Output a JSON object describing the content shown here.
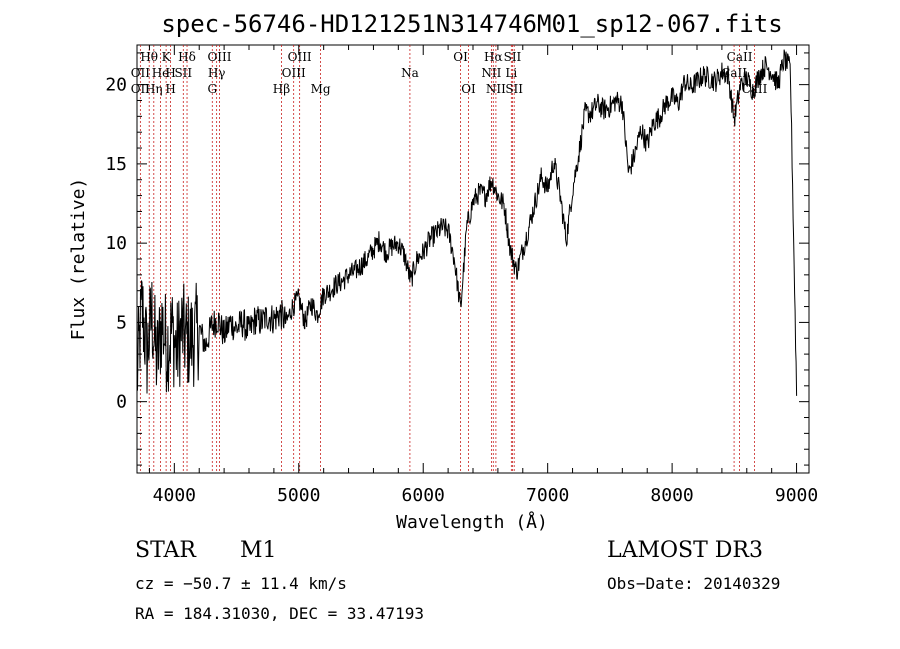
{
  "colors": {
    "spectrum": "#000000",
    "lines": "#c8201e",
    "axes": "#000000"
  },
  "chart_data": {
    "type": "line",
    "title": "spec-56746-HD121251N314746M01_sp12-067.fits",
    "xlabel": "Wavelength (Å)",
    "ylabel": "Flux (relative)",
    "xlim": [
      3700,
      9100
    ],
    "ylim": [
      -4.5,
      22.5
    ],
    "xticks": [
      4000,
      5000,
      6000,
      7000,
      8000,
      9000
    ],
    "yticks": [
      0,
      5,
      10,
      15,
      20
    ],
    "series": [
      {
        "name": "spectrum",
        "x": [
          3700,
          3740,
          3780,
          3820,
          3860,
          3900,
          3940,
          3980,
          4020,
          4060,
          4100,
          4150,
          4200,
          4250,
          4300,
          4350,
          4400,
          4450,
          4500,
          4550,
          4600,
          4650,
          4700,
          4750,
          4800,
          4850,
          4900,
          4950,
          5000,
          5050,
          5100,
          5150,
          5200,
          5250,
          5300,
          5350,
          5400,
          5450,
          5500,
          5550,
          5600,
          5650,
          5700,
          5750,
          5800,
          5850,
          5900,
          5950,
          6000,
          6050,
          6100,
          6150,
          6200,
          6250,
          6300,
          6350,
          6400,
          6450,
          6500,
          6550,
          6600,
          6650,
          6700,
          6750,
          6800,
          6850,
          6900,
          6950,
          7000,
          7050,
          7100,
          7150,
          7200,
          7250,
          7300,
          7350,
          7400,
          7450,
          7500,
          7550,
          7600,
          7650,
          7700,
          7750,
          7800,
          7850,
          7900,
          7950,
          8000,
          8050,
          8100,
          8150,
          8200,
          8250,
          8300,
          8350,
          8400,
          8450,
          8500,
          8550,
          8600,
          8650,
          8700,
          8750,
          8800,
          8850,
          8900,
          8950,
          9000
        ],
        "values": [
          1.5,
          6.0,
          3.0,
          5.5,
          2.5,
          5.0,
          3.5,
          4.5,
          3.2,
          4.6,
          3.8,
          4.0,
          4.6,
          3.5,
          4.8,
          5.2,
          4.2,
          5.0,
          4.6,
          5.0,
          4.4,
          5.2,
          5.0,
          5.4,
          5.2,
          5.6,
          5.0,
          6.0,
          6.5,
          5.0,
          6.2,
          5.5,
          6.8,
          7.0,
          7.4,
          7.6,
          8.0,
          8.2,
          8.6,
          9.0,
          9.6,
          10.2,
          9.4,
          9.8,
          10.0,
          9.2,
          7.6,
          9.0,
          9.4,
          10.2,
          10.6,
          11.0,
          10.8,
          9.0,
          5.8,
          11.0,
          12.6,
          13.2,
          13.0,
          14.0,
          13.0,
          12.4,
          9.6,
          8.2,
          9.6,
          11.0,
          12.6,
          14.2,
          13.4,
          15.2,
          13.0,
          10.2,
          13.4,
          15.6,
          18.2,
          18.2,
          18.8,
          18.4,
          18.6,
          19.0,
          18.8,
          14.4,
          15.6,
          17.2,
          16.2,
          17.6,
          18.0,
          18.8,
          19.2,
          18.8,
          20.2,
          19.8,
          20.2,
          20.6,
          20.4,
          20.2,
          20.8,
          20.6,
          17.8,
          20.0,
          20.4,
          19.6,
          20.6,
          21.2,
          20.8,
          20.0,
          21.6,
          21.0,
          0.6
        ]
      }
    ],
    "annotations": [
      {
        "label": "Hθ",
        "wavelength": 3798,
        "row": 1
      },
      {
        "label": "K",
        "wavelength": 3934,
        "row": 1
      },
      {
        "label": "Hδ",
        "wavelength": 4102,
        "row": 1
      },
      {
        "label": "OIII",
        "wavelength": 4363,
        "row": 1
      },
      {
        "label": "OIII",
        "wavelength": 5007,
        "row": 1
      },
      {
        "label": "OI",
        "wavelength": 6300,
        "row": 1
      },
      {
        "label": "Hα",
        "wavelength": 6563,
        "row": 1
      },
      {
        "label": "SII",
        "wavelength": 6717,
        "row": 1
      },
      {
        "label": "CaII",
        "wavelength": 8542,
        "row": 1
      },
      {
        "label": "OII",
        "wavelength": 3727,
        "row": 2
      },
      {
        "label": "He",
        "wavelength": 3889,
        "row": 2
      },
      {
        "label": "H",
        "wavelength": 3970,
        "row": 2
      },
      {
        "label": "SII",
        "wavelength": 4072,
        "row": 2
      },
      {
        "label": "Hγ",
        "wavelength": 4340,
        "row": 2
      },
      {
        "label": "OIII",
        "wavelength": 4959,
        "row": 2
      },
      {
        "label": "Na",
        "wavelength": 5893,
        "row": 2
      },
      {
        "label": "NII",
        "wavelength": 6548,
        "row": 2
      },
      {
        "label": "Li",
        "wavelength": 6708,
        "row": 2
      },
      {
        "label": "CaII",
        "wavelength": 8498,
        "row": 2
      },
      {
        "label": "OII",
        "wavelength": 3727,
        "row": 3
      },
      {
        "label": "Hη",
        "wavelength": 3835,
        "row": 3
      },
      {
        "label": "H",
        "wavelength": 3970,
        "row": 3
      },
      {
        "label": "G",
        "wavelength": 4305,
        "row": 3
      },
      {
        "label": "Hβ",
        "wavelength": 4861,
        "row": 3
      },
      {
        "label": "Mg",
        "wavelength": 5175,
        "row": 3
      },
      {
        "label": "OI",
        "wavelength": 6364,
        "row": 3
      },
      {
        "label": "NII",
        "wavelength": 6584,
        "row": 3
      },
      {
        "label": "SII",
        "wavelength": 6731,
        "row": 3
      },
      {
        "label": "CaII",
        "wavelength": 8662,
        "row": 3
      }
    ]
  },
  "info": {
    "object_type": "STAR",
    "subclass": "M1",
    "survey": "LAMOST DR3",
    "redshift": "cz = −50.7 ± 11.4 km/s",
    "obs_date": "Obs−Date: 20140329",
    "coords": "RA = 184.31030, DEC =  33.47193"
  }
}
